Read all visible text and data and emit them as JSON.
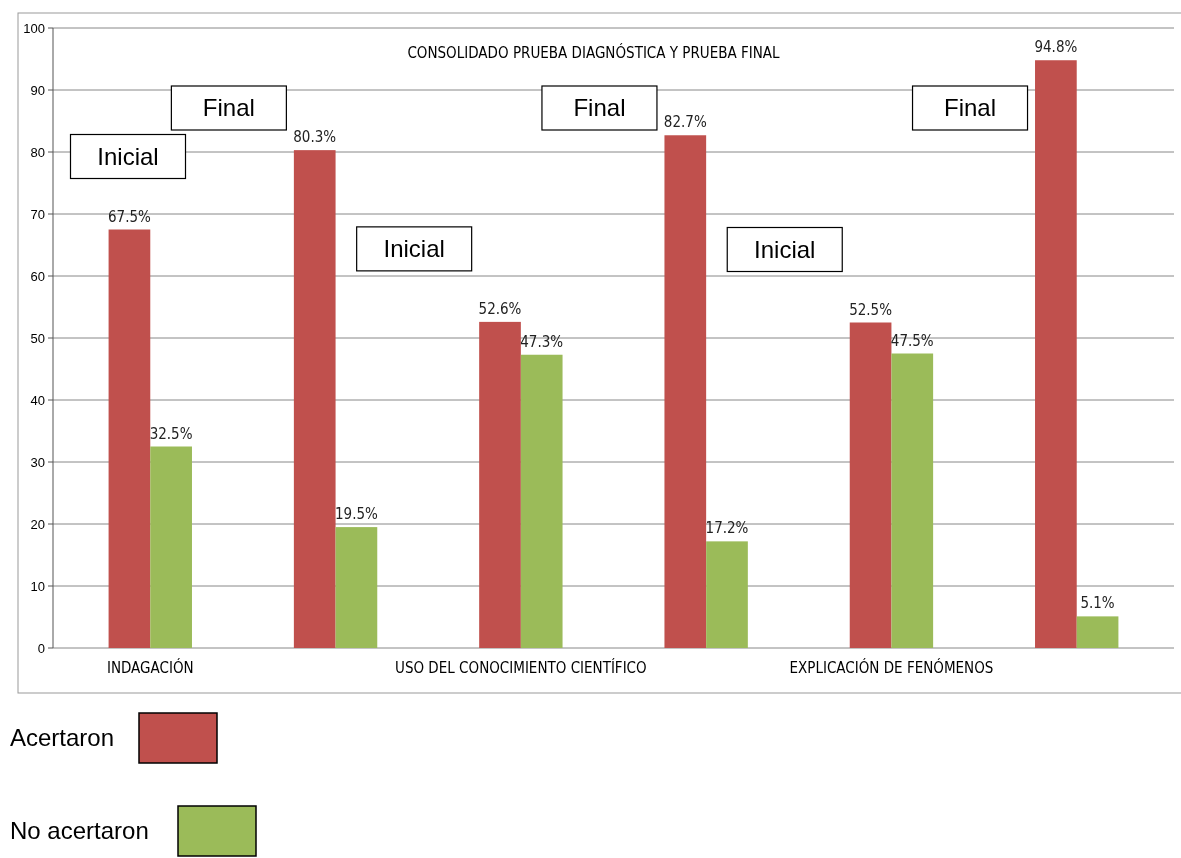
{
  "chart_data": {
    "type": "bar",
    "title": "CONSOLIDADO PRUEBA DIAGNÓSTICA Y PRUEBA FINAL",
    "categories": [
      "INDAGACIÓN",
      null,
      "USO DEL CONOCIMIENTO CIENTÍFICO",
      null,
      "EXPLICACIÓN DE FENÓMENOS",
      null
    ],
    "series": [
      {
        "name": "Acertaron",
        "color": "#c0504d",
        "values": [
          67.5,
          80.3,
          52.6,
          82.7,
          52.5,
          94.8
        ],
        "value_labels": [
          "67.5%",
          "80.3%",
          "52.6%",
          "82.7%",
          "52.5%",
          "94.8%"
        ]
      },
      {
        "name": "No acertaron",
        "color": "#9bbb59",
        "values": [
          32.5,
          19.5,
          47.3,
          17.2,
          47.5,
          5.1
        ],
        "value_labels": [
          "32.5%",
          "19.5%",
          "47.3%",
          "17.2%",
          "47.5%",
          "5.1%"
        ]
      }
    ],
    "annotations": [
      "Inicial",
      "Final",
      "Inicial",
      "Final",
      "Inicial",
      "Final"
    ],
    "ylim": [
      0,
      100
    ],
    "yticks": [
      0,
      10,
      20,
      30,
      40,
      50,
      60,
      70,
      80,
      90,
      100
    ],
    "grid": "y",
    "legend": "bottom left"
  }
}
